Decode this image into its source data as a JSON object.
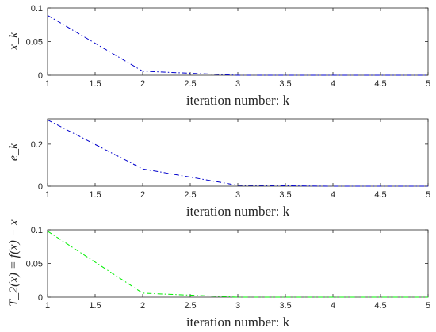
{
  "chart_data": [
    {
      "type": "line",
      "xlabel": "iteration number: k",
      "ylabel": "x_k",
      "xlim": [
        1,
        5
      ],
      "ylim": [
        0,
        0.1
      ],
      "x_ticks": [
        "1",
        "1.5",
        "2",
        "2.5",
        "3",
        "3.5",
        "4",
        "4.5",
        "5"
      ],
      "y_ticks": [
        "0",
        "0.05",
        "0.1"
      ],
      "series": [
        {
          "x": [
            1,
            2,
            3,
            4,
            5
          ],
          "y": [
            0.089,
            0.006,
            0.0,
            0.0,
            0.0
          ],
          "color": "#0000cc",
          "style": "dash-dot"
        }
      ]
    },
    {
      "type": "line",
      "xlabel": "iteration number: k",
      "ylabel": "e_k",
      "xlim": [
        1,
        5
      ],
      "ylim": [
        0,
        0.32
      ],
      "x_ticks": [
        "1",
        "1.5",
        "2",
        "2.5",
        "3",
        "3.5",
        "4",
        "4.5",
        "5"
      ],
      "y_ticks": [
        "0",
        "0.2"
      ],
      "series": [
        {
          "x": [
            1,
            2,
            3,
            4,
            5
          ],
          "y": [
            0.315,
            0.082,
            0.004,
            0.0,
            0.0
          ],
          "color": "#0000cc",
          "style": "dash-dot"
        }
      ]
    },
    {
      "type": "line",
      "xlabel": "iteration number: k",
      "ylabel": "T_2(x) = f(x) − x",
      "xlim": [
        1,
        5
      ],
      "ylim": [
        0,
        0.1
      ],
      "x_ticks": [
        "1",
        "1.5",
        "2",
        "2.5",
        "3",
        "3.5",
        "4",
        "4.5",
        "5"
      ],
      "y_ticks": [
        "0",
        "0.05",
        "0.1"
      ],
      "series": [
        {
          "x": [
            1,
            2,
            3,
            4,
            5
          ],
          "y": [
            0.098,
            0.006,
            0.0,
            0.0,
            0.0
          ],
          "color": "#00ee00",
          "style": "dash-dot"
        }
      ]
    }
  ]
}
